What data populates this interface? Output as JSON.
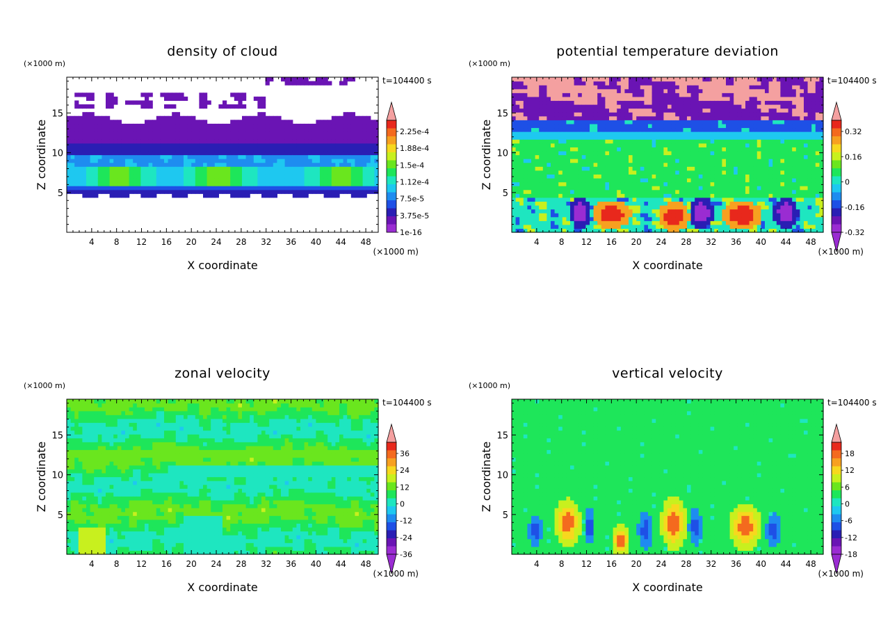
{
  "chart_data": [
    {
      "type": "heatmap",
      "title": "density of cloud",
      "xlabel": "X coordinate",
      "ylabel": "Z coordinate",
      "x_unit": "(×1000 m)",
      "y_unit": "(×1000 m)",
      "time_label": "t=104400 s",
      "xlim": [
        0,
        50
      ],
      "ylim": [
        0,
        19.5
      ],
      "x_ticks": [
        "4",
        "8",
        "12",
        "16",
        "20",
        "24",
        "28",
        "32",
        "36",
        "40",
        "44",
        "48"
      ],
      "y_ticks": [
        "5",
        "10",
        "15"
      ],
      "colorbar": {
        "labels": [
          "2.25e-4",
          "1.88e-4",
          "1.5e-4",
          "1.12e-4",
          "7.5e-5",
          "3.75e-5",
          "1e-16"
        ],
        "colors": [
          "#f4a0a0",
          "#e8281c",
          "#f46a1e",
          "#f7a020",
          "#f7d81e",
          "#c8f01e",
          "#6ae61e",
          "#1ee65a",
          "#1ee6c0",
          "#1ec8f0",
          "#1e8cf0",
          "#1e50e6",
          "#2a1eb4",
          "#6a14b4",
          "#9a2cd2"
        ],
        "arrow_low": false
      },
      "field": "cloud density layer between about 4.5 and 14.5 km, bands 5-10 km highest near 7-8 km"
    },
    {
      "type": "heatmap",
      "title": "potential temperature deviation",
      "xlabel": "X coordinate",
      "ylabel": "Z coordinate",
      "x_unit": "(×1000 m)",
      "y_unit": "(×1000 m)",
      "time_label": "t=104400 s",
      "xlim": [
        0,
        50
      ],
      "ylim": [
        0,
        19.5
      ],
      "x_ticks": [
        "4",
        "8",
        "12",
        "16",
        "20",
        "24",
        "28",
        "32",
        "36",
        "40",
        "44",
        "48"
      ],
      "y_ticks": [
        "5",
        "10",
        "15"
      ],
      "colorbar": {
        "labels": [
          "0.32",
          "0.16",
          "0",
          "-0.16",
          "-0.32"
        ],
        "colors": [
          "#f4a0a0",
          "#e8281c",
          "#f46a1e",
          "#f7a020",
          "#f7d81e",
          "#c8f01e",
          "#6ae61e",
          "#1ee65a",
          "#1ee6c0",
          "#1ec8f0",
          "#1e8cf0",
          "#1e50e6",
          "#2a1eb4",
          "#6a14b4",
          "#9a2cd2"
        ],
        "arrow_low": true
      },
      "field": "pink and purple upper layer above 14 km, green mid layer, red and purple cells below 4.5 km"
    },
    {
      "type": "heatmap",
      "title": "zonal velocity",
      "xlabel": "X coordinate",
      "ylabel": "Z coordinate",
      "x_unit": "(×1000 m)",
      "y_unit": "(×1000 m)",
      "time_label": "t=104400 s",
      "xlim": [
        0,
        50
      ],
      "ylim": [
        0,
        19.5
      ],
      "x_ticks": [
        "4",
        "8",
        "12",
        "16",
        "20",
        "24",
        "28",
        "32",
        "36",
        "40",
        "44",
        "48"
      ],
      "y_ticks": [
        "5",
        "10",
        "15"
      ],
      "colorbar": {
        "labels": [
          "36",
          "24",
          "12",
          "0",
          "-12",
          "-24",
          "-36"
        ],
        "colors": [
          "#f4a0a0",
          "#e8281c",
          "#f46a1e",
          "#f7a020",
          "#f7d81e",
          "#c8f01e",
          "#6ae61e",
          "#1ee65a",
          "#1ee6c0",
          "#1ec8f0",
          "#1e8cf0",
          "#1e50e6",
          "#2a1eb4",
          "#6a14b4",
          "#9a2cd2"
        ],
        "arrow_low": true
      },
      "field": "near-zero velocity everywhere, horizontal green and cyan bands"
    },
    {
      "type": "heatmap",
      "title": "vertical velocity",
      "xlabel": "X coordinate",
      "ylabel": "Z coordinate",
      "x_unit": "(×1000 m)",
      "y_unit": "(×1000 m)",
      "time_label": "t=104400 s",
      "xlim": [
        0,
        50
      ],
      "ylim": [
        0,
        19.5
      ],
      "x_ticks": [
        "4",
        "8",
        "12",
        "16",
        "20",
        "24",
        "28",
        "32",
        "36",
        "40",
        "44",
        "48"
      ],
      "y_ticks": [
        "5",
        "10",
        "15"
      ],
      "colorbar": {
        "labels": [
          "18",
          "12",
          "6",
          "0",
          "-6",
          "-12",
          "-18"
        ],
        "colors": [
          "#f4a0a0",
          "#e8281c",
          "#f46a1e",
          "#f7a020",
          "#f7d81e",
          "#c8f01e",
          "#6ae61e",
          "#1ee65a",
          "#1ee6c0",
          "#1ec8f0",
          "#1e8cf0",
          "#1e50e6",
          "#2a1eb4",
          "#6a14b4",
          "#9a2cd2"
        ],
        "arrow_low": true
      },
      "field": "green background, updraft cells near x=9, 17, 26, 37 km and downdraft cells between them below 8 km"
    }
  ]
}
